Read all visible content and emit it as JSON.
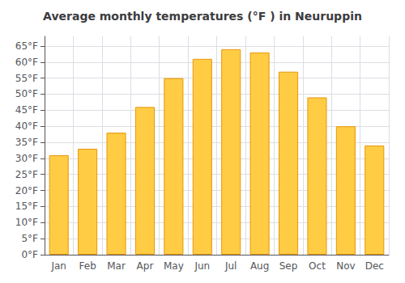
{
  "chart_data": {
    "type": "bar",
    "title": "Average monthly temperatures (°F ) in Neuruppin",
    "categories": [
      "Jan",
      "Feb",
      "Mar",
      "Apr",
      "May",
      "Jun",
      "Jul",
      "Aug",
      "Sep",
      "Oct",
      "Nov",
      "Dec"
    ],
    "values": [
      31,
      33,
      38,
      46,
      55,
      61,
      64,
      63,
      57,
      49,
      40,
      34
    ],
    "color": "#FFCC44",
    "ylim": [
      0,
      68
    ],
    "yticks": [
      {
        "value": 0,
        "label": "0°F"
      },
      {
        "value": 5,
        "label": "5°F"
      },
      {
        "value": 10,
        "label": "10°F"
      },
      {
        "value": 15,
        "label": "15°F"
      },
      {
        "value": 20,
        "label": "20°F"
      },
      {
        "value": 25,
        "label": "25°F"
      },
      {
        "value": 30,
        "label": "30°F"
      },
      {
        "value": 35,
        "label": "35°F"
      },
      {
        "value": 40,
        "label": "40°F"
      },
      {
        "value": 45,
        "label": "45°F"
      },
      {
        "value": 50,
        "label": "50°F"
      },
      {
        "value": 55,
        "label": "55°F"
      },
      {
        "value": 60,
        "label": "60°F"
      },
      {
        "value": 65,
        "label": "65°F"
      }
    ],
    "grid": true
  }
}
